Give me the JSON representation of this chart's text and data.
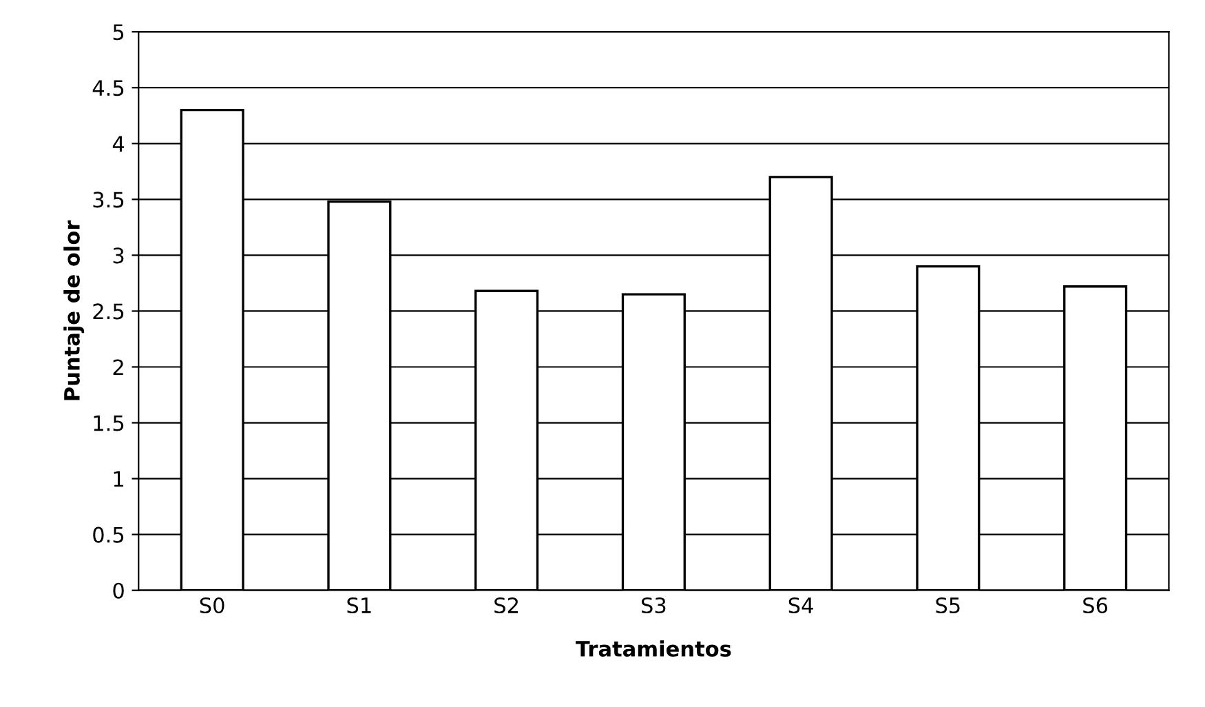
{
  "chart_data": {
    "type": "bar",
    "xlabel": "Tratamientos",
    "ylabel": "Puntaje de olor",
    "categories": [
      "S0",
      "S1",
      "S2",
      "S3",
      "S4",
      "S5",
      "S6"
    ],
    "values": [
      4.3,
      3.48,
      2.68,
      2.65,
      3.7,
      2.9,
      2.72
    ],
    "color": "#ffffff",
    "ylim": [
      0,
      5
    ],
    "yticks": [
      0,
      0.5,
      1,
      1.5,
      2,
      2.5,
      3,
      3.5,
      4,
      4.5,
      5
    ],
    "grid": "y",
    "legend": false
  }
}
